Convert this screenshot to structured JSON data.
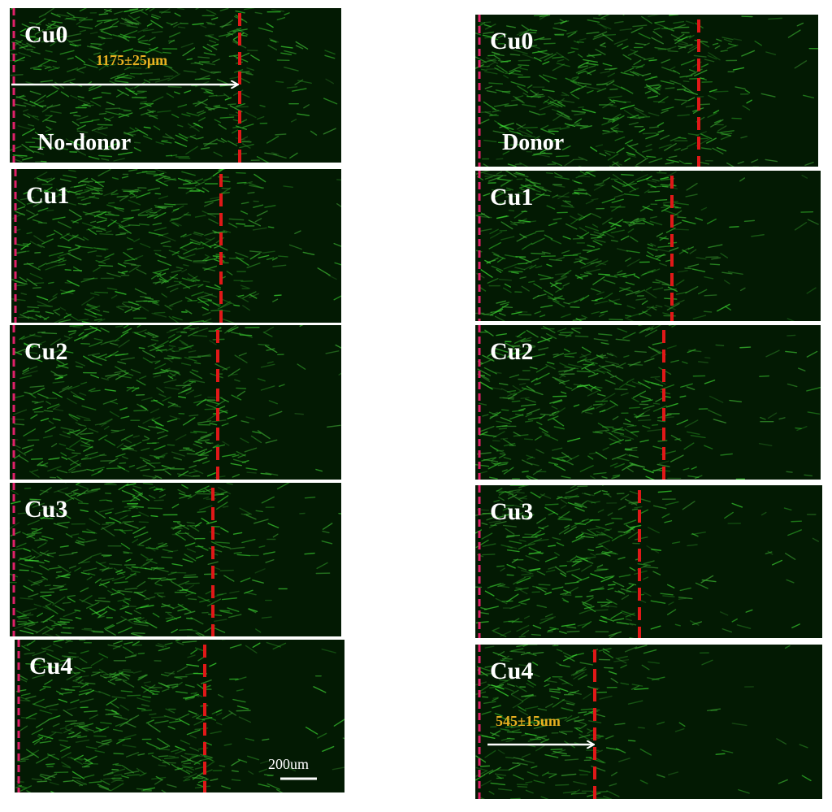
{
  "left": {
    "caption": "No-donor",
    "panels": [
      "Cu0",
      "Cu1",
      "Cu2",
      "Cu3",
      "Cu4"
    ],
    "measure": "1175±25μm",
    "scale_bar": "200um"
  },
  "right": {
    "caption": "Donor",
    "panels": [
      "Cu0",
      "Cu1",
      "Cu2",
      "Cu3",
      "Cu4"
    ],
    "measure": "545±15um"
  }
}
